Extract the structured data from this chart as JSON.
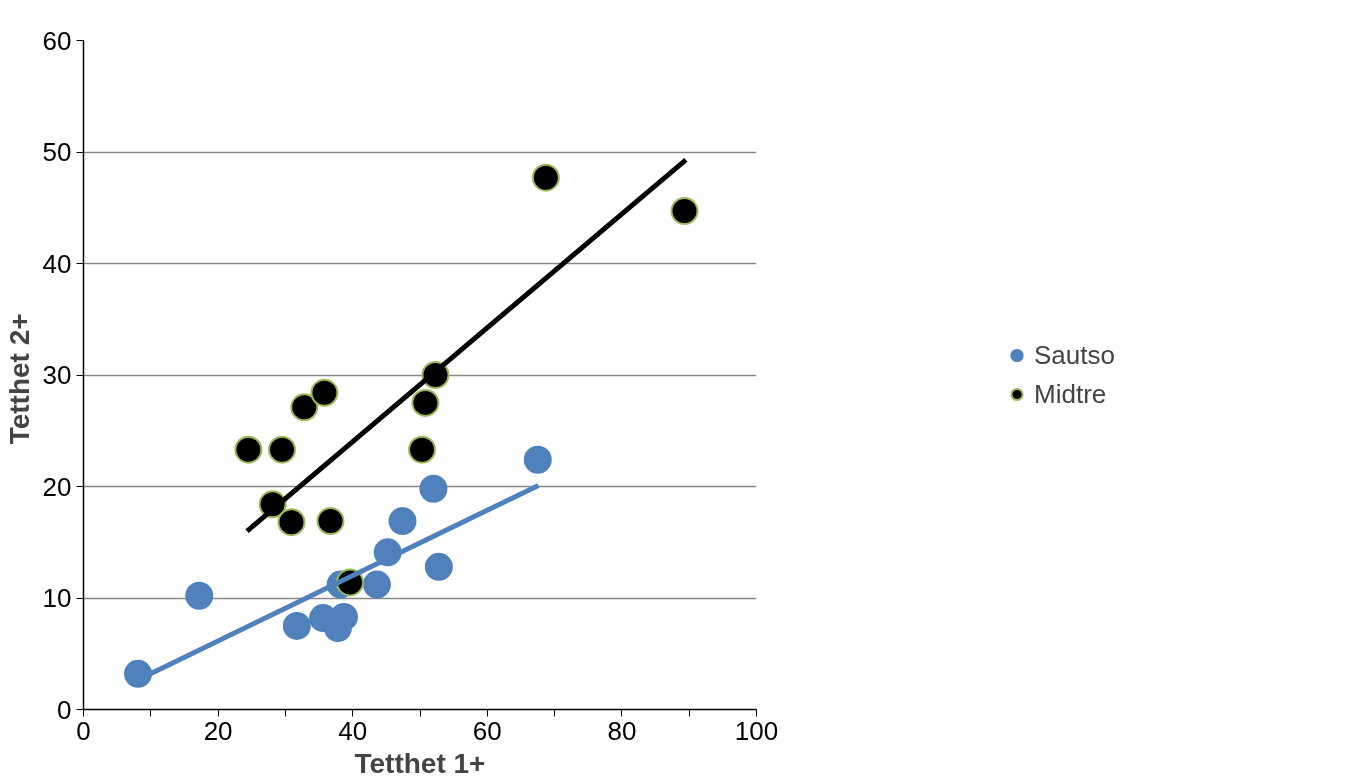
{
  "chart_data": {
    "type": "scatter",
    "xlabel": "Tetthet 1+",
    "ylabel": "Tetthet  2+",
    "xlim": [
      0,
      100
    ],
    "ylim": [
      0,
      60
    ],
    "xticks": [
      0,
      {
        "value": 10,
        "label": null
      },
      20,
      {
        "value": 30,
        "label": null
      },
      40,
      {
        "value": 50,
        "label": null
      },
      60,
      {
        "value": 70,
        "label": null
      },
      80,
      {
        "value": 90,
        "label": null
      },
      100
    ],
    "yticks": [
      0,
      10,
      20,
      30,
      40,
      50,
      60
    ],
    "grid": "y",
    "legend": "right",
    "marker": "circle",
    "series": [
      {
        "name": "Sautso",
        "color": "#4f81bd",
        "x": [
          8.1,
          17.2,
          31.7,
          35.6,
          37.8,
          38.7,
          38.2,
          43.6,
          45.2,
          47.4,
          52.0,
          52.8,
          67.5
        ],
        "values": [
          3.2,
          10.2,
          7.5,
          8.2,
          7.3,
          8.3,
          11.2,
          11.2,
          14.1,
          16.9,
          19.8,
          12.8,
          22.4
        ]
      },
      {
        "name": "Midtre",
        "color": "#000000",
        "x": [
          24.5,
          28.1,
          29.5,
          30.9,
          32.8,
          35.8,
          36.7,
          39.6,
          50.3,
          50.8,
          52.3,
          68.7,
          89.3
        ],
        "values": [
          23.3,
          18.4,
          23.3,
          16.8,
          27.1,
          28.4,
          16.9,
          11.4,
          23.3,
          27.5,
          30.0,
          47.7,
          44.7
        ]
      },
      {
        "type": "line",
        "marker": "none",
        "color": "#4f81bd",
        "x": [
          8.2,
          67.6
        ],
        "values": [
          2.7,
          20.1
        ]
      },
      {
        "type": "line",
        "marker": "none",
        "color": "#000000",
        "x": [
          24.3,
          89.5
        ],
        "values": [
          16.0,
          49.3
        ]
      }
    ]
  }
}
